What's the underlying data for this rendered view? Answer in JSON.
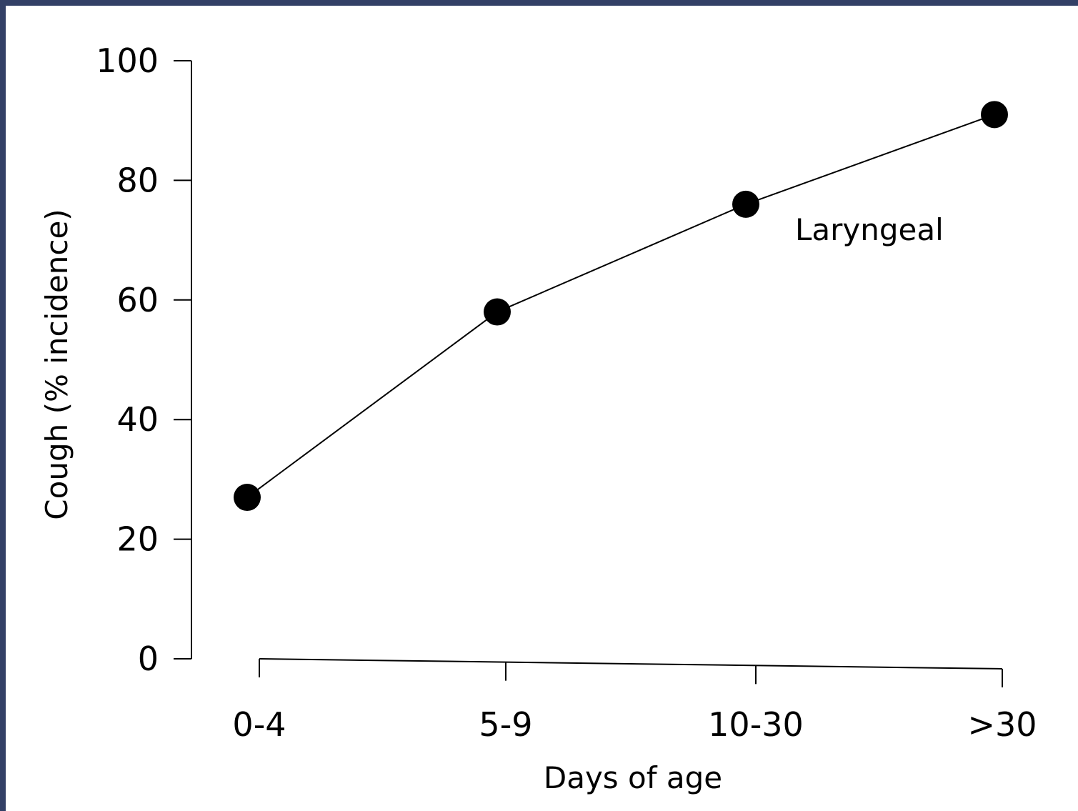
{
  "colors": {
    "border": "#334066",
    "background": "#ffffff",
    "ink": "#000000"
  },
  "chart_data": {
    "type": "line",
    "title": "",
    "xlabel": "Days of age",
    "ylabel": "Cough (% incidence)",
    "categories": [
      "0-4",
      "5-9",
      "10-30",
      ">30"
    ],
    "series": [
      {
        "name": "Laryngeal",
        "values": [
          27,
          58,
          76,
          91
        ]
      }
    ],
    "ylim": [
      0,
      100
    ],
    "yticks": [
      0,
      20,
      40,
      60,
      80,
      100
    ],
    "grid": false,
    "legend": "none",
    "annotations": [
      {
        "text": "Laryngeal",
        "series_index": 0
      }
    ]
  }
}
